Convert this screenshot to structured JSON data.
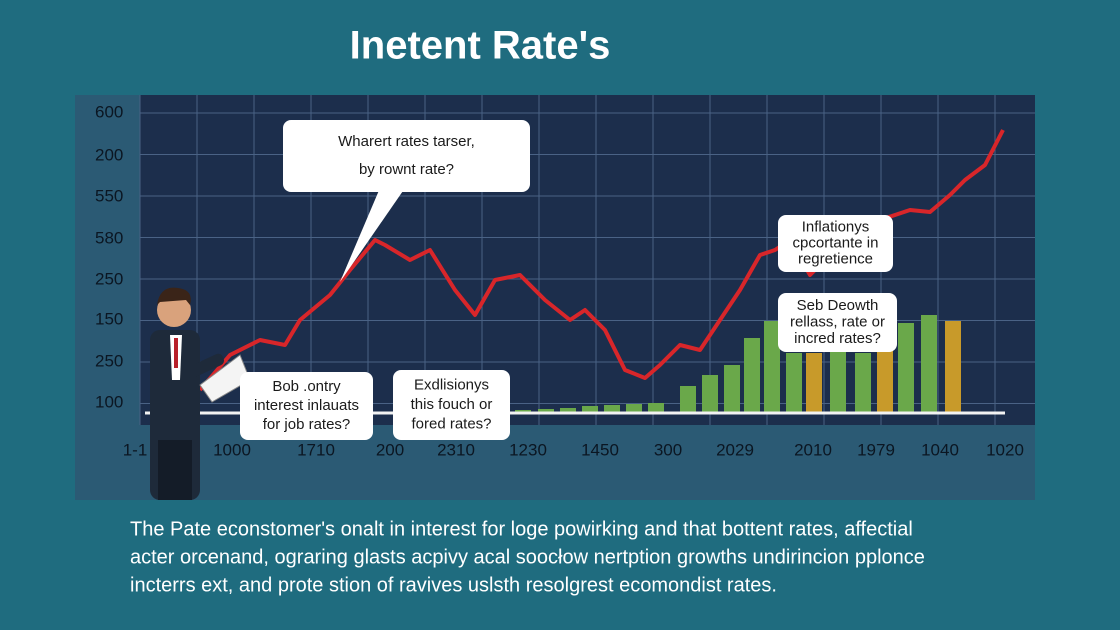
{
  "title": "Inetent Rate's",
  "chart": {
    "y_labels": [
      "600",
      "200",
      "550",
      "580",
      "250",
      "150",
      "250",
      "100"
    ],
    "x_labels": [
      "1-1",
      "1000",
      "1710",
      "200",
      "2310",
      "1230",
      "1450",
      "300",
      "2029",
      "2010",
      "1979",
      "1040",
      "1020"
    ]
  },
  "callouts": [
    {
      "lines": [
        "Wharert rates tarser,",
        "by rownt rate?"
      ]
    },
    {
      "lines": [
        "Inflationys",
        "cpcortante in",
        "regretience"
      ]
    },
    {
      "lines": [
        "Seb Deowth",
        "rellass, rate or",
        "incred rates?"
      ]
    },
    {
      "lines": [
        "Bob .ontry",
        "interest inlauats",
        "for job rates?"
      ]
    },
    {
      "lines": [
        "Exdlisionys",
        "this fouch or",
        "fored rates?"
      ]
    }
  ],
  "caption": [
    "The Pate econstomer's onalt in interest for loge powirking and that bottent rates, affectial",
    "acter orcenand, ograring glasts acpivy acal soocłow nertption growths undirincion pplonce",
    "incterrs ext, and prote stion of ravives uslsth resolgrest ecomondist rates."
  ]
}
